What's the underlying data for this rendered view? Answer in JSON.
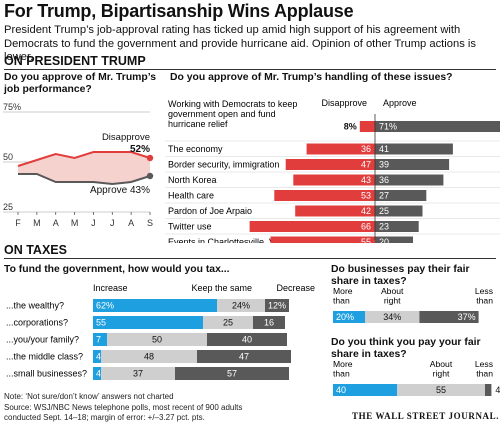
{
  "header": {
    "title": "For Trump, Bipartisanship Wins Applause",
    "deck": "President Trump’s job-approval rating has ticked up amid high support of his agreement with Democrats to fund the government and provide hurricane aid. Opinion of other Trump actions is lower."
  },
  "sections": {
    "president": "ON PRESIDENT TRUMP",
    "taxes": "ON TAXES"
  },
  "colors": {
    "disapprove": "#e23d3d",
    "approve": "#595959",
    "increase": "#1e9fe0",
    "keep": "#cfcfcf",
    "decrease": "#595959",
    "disapprove_fill": "#f6d2cf"
  },
  "chart_data": [
    {
      "type": "line",
      "question": "Do you approve of Mr. Trump’s job performance?",
      "x": [
        "F",
        "M",
        "A",
        "M",
        "J",
        "J",
        "A",
        "S"
      ],
      "ylim": [
        25,
        75
      ],
      "yticks": [
        "75%",
        "50",
        "25"
      ],
      "series": [
        {
          "name": "Disapprove",
          "values": [
            48,
            51,
            54,
            52,
            55,
            55,
            55,
            52
          ],
          "label": "52%"
        },
        {
          "name": "Approve",
          "values": [
            44,
            44,
            40,
            40,
            40,
            39,
            40,
            43
          ],
          "label": "Approve 43%"
        }
      ]
    },
    {
      "type": "bar",
      "question": "Do you approve of Mr. Trump’s handling of these issues?",
      "legend": [
        "Disapprove",
        "Approve"
      ],
      "categories": [
        "Working with Democrats to keep government open and fund hurricane relief",
        "The economy",
        "Border security, immigration",
        "North Korea",
        "Health care",
        "Pardon of Joe Arpaio",
        "Twitter use",
        "Events in Charlottesville, Va."
      ],
      "series": [
        {
          "name": "Disapprove",
          "values": [
            8,
            36,
            47,
            43,
            53,
            42,
            66,
            55
          ],
          "labels": [
            "8%",
            "36",
            "47",
            "43",
            "53",
            "42",
            "66",
            "55"
          ]
        },
        {
          "name": "Approve",
          "values": [
            71,
            41,
            39,
            36,
            27,
            25,
            23,
            20
          ],
          "labels": [
            "71%",
            "41",
            "39",
            "36",
            "27",
            "25",
            "23",
            "20"
          ]
        }
      ]
    },
    {
      "type": "bar",
      "question": "To fund the government, how would you tax...",
      "legend": [
        "Increase",
        "Keep the same",
        "Decrease"
      ],
      "categories": [
        "...the wealthy?",
        "...corporations?",
        "...you/your family?",
        "...the middle class?",
        "...small businesses?"
      ],
      "series": [
        {
          "name": "Increase",
          "values": [
            62,
            55,
            7,
            4,
            4
          ],
          "labels": [
            "62%",
            "55",
            "7",
            "4",
            "4"
          ]
        },
        {
          "name": "Keep the same",
          "values": [
            24,
            25,
            50,
            48,
            37
          ],
          "labels": [
            "24%",
            "25",
            "50",
            "48",
            "37"
          ]
        },
        {
          "name": "Decrease",
          "values": [
            12,
            16,
            40,
            47,
            57
          ],
          "labels": [
            "12%",
            "16",
            "40",
            "47",
            "57"
          ]
        }
      ]
    },
    {
      "type": "bar",
      "question": "Do businesses pay their fair share in taxes?",
      "legend": [
        "More than",
        "About right",
        "Less than"
      ],
      "series": [
        {
          "name": "More than",
          "values": [
            20
          ],
          "labels": [
            "20%"
          ]
        },
        {
          "name": "About right",
          "values": [
            34
          ],
          "labels": [
            "34%"
          ]
        },
        {
          "name": "Less than",
          "values": [
            37
          ],
          "labels": [
            "37%"
          ]
        }
      ]
    },
    {
      "type": "bar",
      "question": "Do you think you pay your fair share in taxes?",
      "legend": [
        "More than",
        "About right",
        "Less than"
      ],
      "series": [
        {
          "name": "More than",
          "values": [
            40
          ],
          "labels": [
            "40"
          ]
        },
        {
          "name": "About right",
          "values": [
            55
          ],
          "labels": [
            "55"
          ]
        },
        {
          "name": "Less than",
          "values": [
            4
          ],
          "labels": [
            "4"
          ]
        }
      ]
    }
  ],
  "footer": {
    "note": "Note: ‘Not sure/don’t know’ answers not charted",
    "source1": "Source: WSJ/NBC News telephone polls, most recent of 900 adults",
    "source2": "conducted Sept. 14–18; margin of error: +/–3.27 pct. pts.",
    "brand": "THE WALL STREET JOURNAL."
  }
}
